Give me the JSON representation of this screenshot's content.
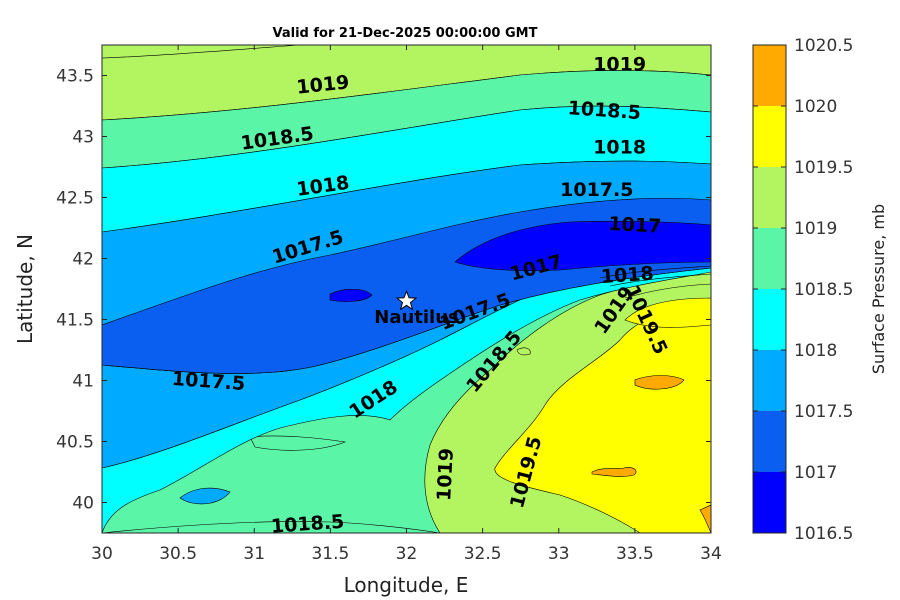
{
  "chart_data": {
    "type": "contour",
    "title": "Valid for 21-Dec-2025 00:00:00 GMT",
    "xlabel": "Longitude, E",
    "ylabel": "Latitude, N",
    "xlim": [
      30,
      34
    ],
    "ylim": [
      39.75,
      43.75
    ],
    "xticks": [
      "30",
      "30.5",
      "31",
      "31.5",
      "32",
      "32.5",
      "33",
      "33.5",
      "34"
    ],
    "yticks": [
      "40",
      "40.5",
      "41",
      "41.5",
      "42",
      "42.5",
      "43",
      "43.5"
    ],
    "colorbar": {
      "label": "Surface Pressure, mb",
      "levels": [
        "1016.5",
        "1017",
        "1017.5",
        "1018",
        "1018.5",
        "1019",
        "1019.5",
        "1020",
        "1020.5"
      ],
      "colors": [
        "#0000ff",
        "#0a5ff0",
        "#00aaff",
        "#00ffff",
        "#5bf5a7",
        "#b2f561",
        "#ffff00",
        "#ffaa00",
        "#ff5500"
      ]
    },
    "station": {
      "name": "Nautilus",
      "lon": 32.0,
      "lat": 41.65
    },
    "contour_labels": [
      {
        "text": "1019",
        "lon": 31.45,
        "lat": 43.43,
        "rot": -6
      },
      {
        "text": "1019",
        "lon": 33.4,
        "lat": 43.6,
        "rot": 0
      },
      {
        "text": "1018.5",
        "lon": 31.15,
        "lat": 42.99,
        "rot": -8
      },
      {
        "text": "1018.5",
        "lon": 33.3,
        "lat": 43.22,
        "rot": 4
      },
      {
        "text": "1018",
        "lon": 31.45,
        "lat": 42.6,
        "rot": -8
      },
      {
        "text": "1018",
        "lon": 33.4,
        "lat": 42.92,
        "rot": 0
      },
      {
        "text": "1017.5",
        "lon": 31.35,
        "lat": 42.1,
        "rot": -17
      },
      {
        "text": "1017.5",
        "lon": 33.25,
        "lat": 42.57,
        "rot": 0
      },
      {
        "text": "1017",
        "lon": 33.5,
        "lat": 42.28,
        "rot": 3
      },
      {
        "text": "1017",
        "lon": 32.85,
        "lat": 41.93,
        "rot": -15
      },
      {
        "text": "1018",
        "lon": 33.45,
        "lat": 41.87,
        "rot": -4
      },
      {
        "text": "1017.5",
        "lon": 32.45,
        "lat": 41.57,
        "rot": -20
      },
      {
        "text": "1019",
        "lon": 33.36,
        "lat": 41.58,
        "rot": -55
      },
      {
        "text": "1019.5",
        "lon": 33.58,
        "lat": 41.5,
        "rot": 65
      },
      {
        "text": "1018.5",
        "lon": 32.57,
        "lat": 41.16,
        "rot": -50
      },
      {
        "text": "1018",
        "lon": 31.78,
        "lat": 40.85,
        "rot": -33
      },
      {
        "text": "1017.5",
        "lon": 30.7,
        "lat": 41.0,
        "rot": 4
      },
      {
        "text": "1019",
        "lon": 32.25,
        "lat": 40.23,
        "rot": -87
      },
      {
        "text": "1019.5",
        "lon": 32.78,
        "lat": 40.25,
        "rot": -75
      },
      {
        "text": "1018.5",
        "lon": 31.35,
        "lat": 39.83,
        "rot": -4
      }
    ]
  }
}
